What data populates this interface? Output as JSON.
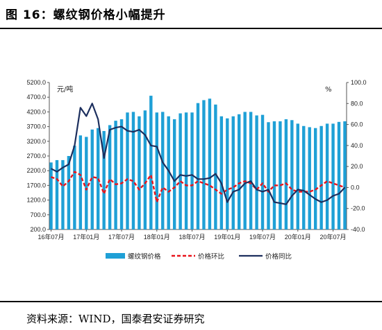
{
  "figure": {
    "title": "图 16：螺纹钢价格小幅提升",
    "source": "资料来源：WIND，国泰君安证券研究"
  },
  "chart_data": {
    "type": "bar+line",
    "left_axis": {
      "unit": "元/吨",
      "min": 200,
      "max": 5200,
      "step": 500,
      "ticks": [
        "5200.0",
        "4700.0",
        "4200.0",
        "3700.0",
        "3200.0",
        "2700.0",
        "2200.0",
        "1700.0",
        "1200.0",
        "700.0",
        "200.0"
      ]
    },
    "right_axis": {
      "unit": "%",
      "min": -40,
      "max": 100,
      "step": 20,
      "ticks": [
        "100.0",
        "80.0",
        "60.0",
        "40.0",
        "20.0",
        "0.0",
        "-20.0",
        "-40.0"
      ]
    },
    "x_ticks": [
      {
        "label": "16年07月",
        "index": 0
      },
      {
        "label": "17年01月",
        "index": 6
      },
      {
        "label": "17年07月",
        "index": 12
      },
      {
        "label": "18年01月",
        "index": 18
      },
      {
        "label": "18年07月",
        "index": 24
      },
      {
        "label": "19年01月",
        "index": 30
      },
      {
        "label": "19年07月",
        "index": 36
      },
      {
        "label": "20年01月",
        "index": 42
      },
      {
        "label": "20年07月",
        "index": 48
      }
    ],
    "series": [
      {
        "name": "螺纹钢价格",
        "type": "bar",
        "axis": "left",
        "color": "#1fa0d6",
        "values": [
          2480,
          2560,
          2560,
          2700,
          3050,
          3400,
          3350,
          3600,
          3650,
          3550,
          3750,
          3900,
          3950,
          4180,
          4200,
          4050,
          4250,
          4750,
          4180,
          4200,
          4050,
          3950,
          4150,
          4180,
          4180,
          4500,
          4600,
          4650,
          4450,
          4050,
          3980,
          4050,
          4120,
          4200,
          4200,
          4080,
          4100,
          3850,
          3880,
          3880,
          3950,
          3920,
          3800,
          3720,
          3680,
          3650,
          3720,
          3800,
          3800,
          3860,
          3880
        ]
      },
      {
        "name": "价格环比",
        "type": "line",
        "axis": "right",
        "color": "#e8141b",
        "values": [
          10,
          8,
          1,
          6,
          15,
          12,
          -2,
          10,
          9,
          -6,
          8,
          3,
          4,
          8,
          6,
          -2,
          4,
          12,
          -14,
          0,
          -4,
          0,
          6,
          2,
          2,
          6,
          4,
          2,
          -2,
          -6,
          -2,
          0,
          4,
          6,
          4,
          -2,
          4,
          -4,
          2,
          2,
          4,
          -2,
          -4,
          -4,
          -4,
          -2,
          2,
          6,
          4,
          2,
          0
        ]
      },
      {
        "name": "价格同比",
        "type": "line",
        "axis": "right",
        "color": "#1c2f5e",
        "values": [
          18,
          15,
          19,
          22,
          40,
          76,
          68,
          80,
          65,
          28,
          55,
          57,
          58,
          54,
          53,
          55,
          50,
          40,
          39,
          24,
          16,
          6,
          12,
          11,
          12,
          8,
          8,
          9,
          13,
          4,
          -14,
          -4,
          -2,
          4,
          6,
          -2,
          -4,
          -2,
          -14,
          -15,
          -16,
          -8,
          -2,
          -3,
          -7,
          -11,
          -14,
          -12,
          -8,
          -6,
          0
        ]
      }
    ]
  }
}
